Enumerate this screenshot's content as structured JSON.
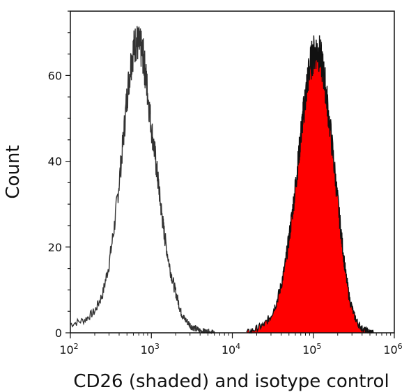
{
  "chart_data": {
    "type": "area",
    "title": "",
    "xlabel": "CD26 (shaded) and isotype control",
    "ylabel": "Count",
    "xscale": "log",
    "xlim": [
      100,
      1000000
    ],
    "ylim": [
      0,
      75
    ],
    "x_ticks": [
      {
        "base": "10",
        "exp": "2"
      },
      {
        "base": "10",
        "exp": "3"
      },
      {
        "base": "10",
        "exp": "4"
      },
      {
        "base": "10",
        "exp": "5"
      },
      {
        "base": "10",
        "exp": "6"
      }
    ],
    "y_ticks": [
      "0",
      "20",
      "40",
      "60"
    ],
    "series": [
      {
        "name": "isotype control",
        "style": "outline",
        "color": "#333333",
        "x": [
          100,
          150,
          200,
          250,
          300,
          350,
          400,
          450,
          500,
          550,
          600,
          650,
          700,
          750,
          800,
          850,
          900,
          1000,
          1100,
          1200,
          1300,
          1400,
          1500,
          1700,
          1900,
          2100,
          2300,
          2500,
          2800,
          3100,
          3500,
          4000,
          4500,
          5000,
          5500,
          6000
        ],
        "values": [
          2,
          3,
          5,
          9,
          16,
          25,
          35,
          45,
          55,
          62,
          66,
          68,
          67,
          66,
          64,
          60,
          56,
          48,
          42,
          36,
          30,
          25,
          21,
          15,
          11,
          8,
          5,
          3.5,
          2.5,
          1.5,
          1,
          0.5,
          0.3,
          0.2,
          0.1,
          0
        ]
      },
      {
        "name": "CD26",
        "style": "shaded",
        "color": "#ff0000",
        "x": [
          15000,
          20000,
          25000,
          30000,
          35000,
          40000,
          45000,
          50000,
          55000,
          60000,
          65000,
          70000,
          75000,
          80000,
          85000,
          90000,
          100000,
          110000,
          120000,
          130000,
          140000,
          150000,
          170000,
          190000,
          210000,
          230000,
          250000,
          280000,
          320000,
          360000,
          400000,
          450000,
          500000,
          550000
        ],
        "values": [
          0,
          1,
          2,
          4,
          7,
          11,
          16,
          22,
          28,
          34,
          40,
          46,
          51,
          55,
          59,
          62,
          65,
          66,
          65,
          62,
          58,
          53,
          44,
          35,
          27,
          20,
          14,
          8,
          4,
          2,
          1,
          0.5,
          0.2,
          0
        ]
      }
    ]
  }
}
